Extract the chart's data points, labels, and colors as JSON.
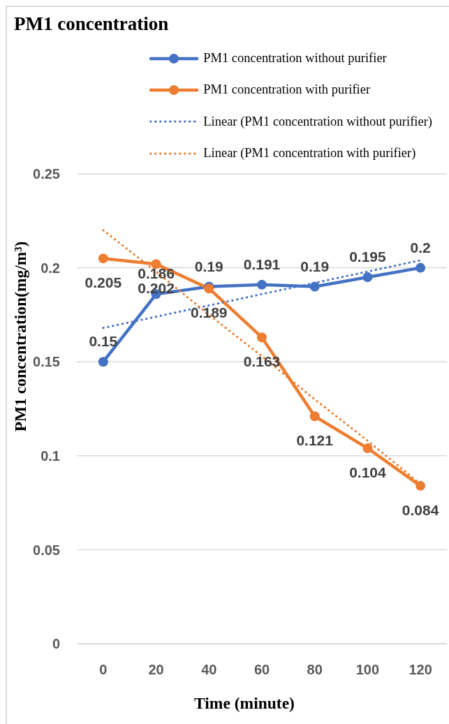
{
  "chart_data": {
    "type": "line",
    "title": "PM1 concentration",
    "xlabel": "Time (minute)",
    "ylabel": "PM1 concentration(mg/m³)",
    "x": [
      0,
      20,
      40,
      60,
      80,
      100,
      120
    ],
    "xlim": [
      -10,
      130
    ],
    "xticks": [
      0,
      20,
      40,
      60,
      80,
      100,
      120
    ],
    "ylim": [
      0,
      0.25
    ],
    "yticks": [
      0,
      0.05,
      0.1,
      0.15,
      0.2,
      0.25
    ],
    "grid": "y",
    "legend": "top right",
    "series": [
      {
        "name": "PM1 concentration without purifier",
        "color": "#4472c4",
        "values": [
          0.15,
          0.186,
          0.19,
          0.191,
          0.19,
          0.195,
          0.2
        ],
        "marker": "circle",
        "line_style": "solid",
        "data_labels": true
      },
      {
        "name": "PM1 concentration with purifier",
        "color": "#ed7d31",
        "values": [
          0.205,
          0.202,
          0.189,
          0.163,
          0.121,
          0.104,
          0.084
        ],
        "marker": "circle",
        "line_style": "solid",
        "data_labels": true
      },
      {
        "name": "Linear (PM1 concentration without purifier)",
        "color": "#4472c4",
        "values": [
          0.168,
          0.174,
          0.18,
          0.186,
          0.192,
          0.198,
          0.204
        ],
        "marker": "none",
        "line_style": "dotted"
      },
      {
        "name": "Linear (PM1 concentration with purifier)",
        "color": "#ed7d31",
        "values": [
          0.22,
          0.198,
          0.175,
          0.153,
          0.13,
          0.108,
          0.085
        ],
        "marker": "none",
        "line_style": "dotted"
      }
    ]
  }
}
